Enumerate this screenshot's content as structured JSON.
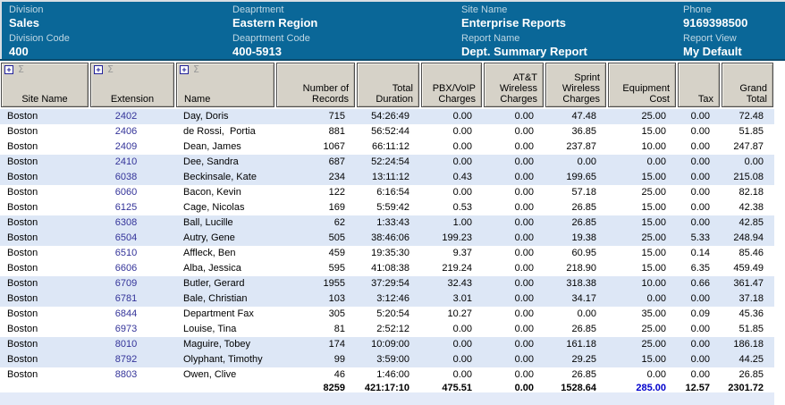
{
  "header": {
    "fields": [
      {
        "label": "Division",
        "value": "Sales"
      },
      {
        "label": "Deaprtment",
        "value": "Eastern Region"
      },
      {
        "label": "Site Name",
        "value": "Enterprise Reports"
      },
      {
        "label": "Phone",
        "value": "9169398500"
      },
      {
        "label": "Division Code",
        "value": "400"
      },
      {
        "label": "Deaprtment Code",
        "value": "400-5913"
      },
      {
        "label": "Report Name",
        "value": "Dept. Summary Report"
      },
      {
        "label": "Report View",
        "value": "My Default"
      }
    ]
  },
  "icons": {
    "expand_icon": "+",
    "sigma_icon": "Σ"
  },
  "table": {
    "columns": [
      "Site Name",
      "Extension",
      "Name",
      "Number of Records",
      "Total Duration",
      "PBX/VoIP Charges",
      "AT&T Wireless Charges",
      "Sprint Wireless Charges",
      "Equipment Cost",
      "Tax",
      "Grand Total"
    ],
    "rows": [
      {
        "site": "Boston",
        "extension": "2402",
        "name": "Day, Doris",
        "records": "715",
        "duration": "54:26:49",
        "pbx_voip": "0.00",
        "att_wireless": "0.00",
        "sprint_wireless": "47.48",
        "equipment": "25.00",
        "tax": "0.00",
        "grand_total": "72.48"
      },
      {
        "site": "Boston",
        "extension": "2406",
        "name": "de Rossi,  Portia",
        "records": "881",
        "duration": "56:52:44",
        "pbx_voip": "0.00",
        "att_wireless": "0.00",
        "sprint_wireless": "36.85",
        "equipment": "15.00",
        "tax": "0.00",
        "grand_total": "51.85"
      },
      {
        "site": "Boston",
        "extension": "2409",
        "name": "Dean, James",
        "records": "1067",
        "duration": "66:11:12",
        "pbx_voip": "0.00",
        "att_wireless": "0.00",
        "sprint_wireless": "237.87",
        "equipment": "10.00",
        "tax": "0.00",
        "grand_total": "247.87"
      },
      {
        "site": "Boston",
        "extension": "2410",
        "name": "Dee, Sandra",
        "records": "687",
        "duration": "52:24:54",
        "pbx_voip": "0.00",
        "att_wireless": "0.00",
        "sprint_wireless": "0.00",
        "equipment": "0.00",
        "tax": "0.00",
        "grand_total": "0.00"
      },
      {
        "site": "Boston",
        "extension": "6038",
        "name": "Beckinsale, Kate",
        "records": "234",
        "duration": "13:11:12",
        "pbx_voip": "0.43",
        "att_wireless": "0.00",
        "sprint_wireless": "199.65",
        "equipment": "15.00",
        "tax": "0.00",
        "grand_total": "215.08"
      },
      {
        "site": "Boston",
        "extension": "6060",
        "name": "Bacon, Kevin",
        "records": "122",
        "duration": "6:16:54",
        "pbx_voip": "0.00",
        "att_wireless": "0.00",
        "sprint_wireless": "57.18",
        "equipment": "25.00",
        "tax": "0.00",
        "grand_total": "82.18"
      },
      {
        "site": "Boston",
        "extension": "6125",
        "name": "Cage, Nicolas",
        "records": "169",
        "duration": "5:59:42",
        "pbx_voip": "0.53",
        "att_wireless": "0.00",
        "sprint_wireless": "26.85",
        "equipment": "15.00",
        "tax": "0.00",
        "grand_total": "42.38"
      },
      {
        "site": "Boston",
        "extension": "6308",
        "name": "Ball, Lucille",
        "records": "62",
        "duration": "1:33:43",
        "pbx_voip": "1.00",
        "att_wireless": "0.00",
        "sprint_wireless": "26.85",
        "equipment": "15.00",
        "tax": "0.00",
        "grand_total": "42.85"
      },
      {
        "site": "Boston",
        "extension": "6504",
        "name": "Autry, Gene",
        "records": "505",
        "duration": "38:46:06",
        "pbx_voip": "199.23",
        "att_wireless": "0.00",
        "sprint_wireless": "19.38",
        "equipment": "25.00",
        "tax": "5.33",
        "grand_total": "248.94"
      },
      {
        "site": "Boston",
        "extension": "6510",
        "name": "Affleck, Ben",
        "records": "459",
        "duration": "19:35:30",
        "pbx_voip": "9.37",
        "att_wireless": "0.00",
        "sprint_wireless": "60.95",
        "equipment": "15.00",
        "tax": "0.14",
        "grand_total": "85.46"
      },
      {
        "site": "Boston",
        "extension": "6606",
        "name": "Alba, Jessica",
        "records": "595",
        "duration": "41:08:38",
        "pbx_voip": "219.24",
        "att_wireless": "0.00",
        "sprint_wireless": "218.90",
        "equipment": "15.00",
        "tax": "6.35",
        "grand_total": "459.49"
      },
      {
        "site": "Boston",
        "extension": "6709",
        "name": "Butler, Gerard",
        "records": "1955",
        "duration": "37:29:54",
        "pbx_voip": "32.43",
        "att_wireless": "0.00",
        "sprint_wireless": "318.38",
        "equipment": "10.00",
        "tax": "0.66",
        "grand_total": "361.47"
      },
      {
        "site": "Boston",
        "extension": "6781",
        "name": "Bale, Christian",
        "records": "103",
        "duration": "3:12:46",
        "pbx_voip": "3.01",
        "att_wireless": "0.00",
        "sprint_wireless": "34.17",
        "equipment": "0.00",
        "tax": "0.00",
        "grand_total": "37.18"
      },
      {
        "site": "Boston",
        "extension": "6844",
        "name": "Department Fax",
        "records": "305",
        "duration": "5:20:54",
        "pbx_voip": "10.27",
        "att_wireless": "0.00",
        "sprint_wireless": "0.00",
        "equipment": "35.00",
        "tax": "0.09",
        "grand_total": "45.36"
      },
      {
        "site": "Boston",
        "extension": "6973",
        "name": "Louise, Tina",
        "records": "81",
        "duration": "2:52:12",
        "pbx_voip": "0.00",
        "att_wireless": "0.00",
        "sprint_wireless": "26.85",
        "equipment": "25.00",
        "tax": "0.00",
        "grand_total": "51.85"
      },
      {
        "site": "Boston",
        "extension": "8010",
        "name": "Maguire, Tobey",
        "records": "174",
        "duration": "10:09:00",
        "pbx_voip": "0.00",
        "att_wireless": "0.00",
        "sprint_wireless": "161.18",
        "equipment": "25.00",
        "tax": "0.00",
        "grand_total": "186.18"
      },
      {
        "site": "Boston",
        "extension": "8792",
        "name": "Olyphant, Timothy",
        "records": "99",
        "duration": "3:59:00",
        "pbx_voip": "0.00",
        "att_wireless": "0.00",
        "sprint_wireless": "29.25",
        "equipment": "15.00",
        "tax": "0.00",
        "grand_total": "44.25"
      },
      {
        "site": "Boston",
        "extension": "8803",
        "name": "Owen, Clive",
        "records": "46",
        "duration": "1:46:00",
        "pbx_voip": "0.00",
        "att_wireless": "0.00",
        "sprint_wireless": "26.85",
        "equipment": "0.00",
        "tax": "0.00",
        "grand_total": "26.85"
      }
    ],
    "totals": {
      "site": "",
      "extension": "",
      "name": "",
      "records": "8259",
      "duration": "421:17:10",
      "pbx_voip": "475.51",
      "att_wireless": "0.00",
      "sprint_wireless": "1528.64",
      "equipment": "285.00",
      "tax": "12.57",
      "grand_total": "2301.72"
    }
  },
  "colors": {
    "header_background": "#0a6798",
    "header_label_text": "#bfd7e3",
    "header_value_text": "#ffffff",
    "column_header_background": "#d6d2c8",
    "row_stripe": "#dde7f6",
    "extension_link": "#333399",
    "equipment_total_accent": "#0000cc"
  }
}
